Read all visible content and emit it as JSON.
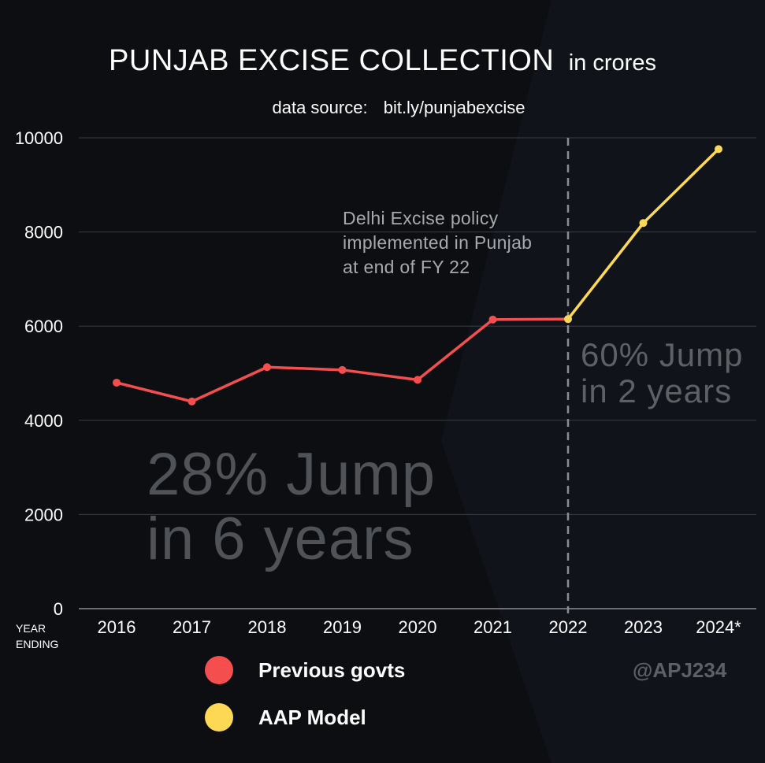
{
  "title": "PUNJAB EXCISE COLLECTION",
  "title_unit": "in  crores",
  "subtitle_label": "data source:",
  "subtitle_source": "bit.ly/punjabexcise",
  "x_caption_line1": "YEAR",
  "x_caption_line2": "ENDING",
  "annotation_lines": [
    "Delhi Excise policy",
    "implemented in Punjab",
    "at end of FY 22"
  ],
  "big_text_lines": [
    "28% Jump",
    "in 6 years"
  ],
  "mid_text_lines": [
    "60% Jump",
    "in 2 years"
  ],
  "legend": [
    {
      "label": "Previous govts",
      "color": "#f44e4e"
    },
    {
      "label": "AAP Model",
      "color": "#fdd855"
    }
  ],
  "watermark": "@APJ234",
  "chart_data": {
    "type": "line",
    "categories": [
      "2016",
      "2017",
      "2018",
      "2019",
      "2020",
      "2021",
      "2022",
      "2023",
      "2024*"
    ],
    "series": [
      {
        "name": "Previous govts",
        "color": "#f44e4e",
        "x": [
          "2016",
          "2017",
          "2018",
          "2019",
          "2020",
          "2021",
          "2022"
        ],
        "values": [
          4800,
          4400,
          5130,
          5070,
          4860,
          6140,
          6150
        ]
      },
      {
        "name": "AAP Model",
        "color": "#fdd855",
        "x": [
          "2022",
          "2023",
          "2024*"
        ],
        "values": [
          6150,
          8190,
          9760
        ]
      }
    ],
    "y_ticks": [
      "0",
      "2000",
      "4000",
      "6000",
      "8000",
      "10000"
    ],
    "ylim": [
      0,
      10000
    ],
    "grid": "horizontal",
    "marker_line_at": "2022",
    "legend_position": "bottom-left"
  }
}
